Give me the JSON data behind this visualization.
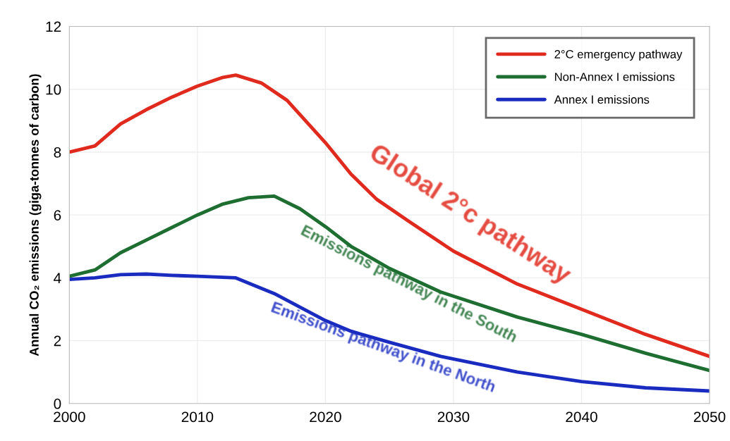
{
  "chart_data": {
    "type": "line",
    "ylabel": "Annual CO₂ emissions (giga-tonnes of carbon)",
    "xlim": [
      2000,
      2050
    ],
    "xticks": [
      2000,
      2010,
      2020,
      2030,
      2040,
      2050
    ],
    "ylim": [
      0,
      12
    ],
    "yticks": [
      0,
      2,
      4,
      6,
      8,
      10,
      12
    ],
    "grid": true,
    "legend": "top right",
    "marker": "none",
    "line_style": "solid",
    "series": [
      {
        "name": "2°C emergency pathway",
        "color": "#e02a1e",
        "x": [
          2000,
          2002,
          2004,
          2006,
          2008,
          2010,
          2012,
          2013,
          2015,
          2017,
          2020,
          2022,
          2024,
          2026.5,
          2030,
          2035,
          2040,
          2045,
          2050
        ],
        "values": [
          8.0,
          8.2,
          8.9,
          9.35,
          9.75,
          10.1,
          10.38,
          10.45,
          10.2,
          9.65,
          8.3,
          7.3,
          6.5,
          5.8,
          4.85,
          3.8,
          3.0,
          2.2,
          1.5
        ]
      },
      {
        "name": "Non-Annex I emissions",
        "color": "#1e6e32",
        "x": [
          2000,
          2002,
          2004,
          2006,
          2008,
          2010,
          2012,
          2014,
          2016,
          2018,
          2020,
          2022,
          2025,
          2029,
          2035,
          2040,
          2045,
          2050
        ],
        "values": [
          4.05,
          4.25,
          4.8,
          5.2,
          5.6,
          6.0,
          6.35,
          6.55,
          6.6,
          6.2,
          5.63,
          5.0,
          4.3,
          3.55,
          2.75,
          2.2,
          1.6,
          1.05
        ]
      },
      {
        "name": "Annex I emissions",
        "color": "#1a2cc0",
        "x": [
          2000,
          2002,
          2004,
          2006,
          2008,
          2010,
          2013,
          2016,
          2020,
          2022,
          2025,
          2029,
          2035,
          2040,
          2045,
          2050
        ],
        "values": [
          3.95,
          4.0,
          4.1,
          4.12,
          4.08,
          4.05,
          4.0,
          3.5,
          2.64,
          2.3,
          1.95,
          1.5,
          1.0,
          0.7,
          0.5,
          0.4
        ]
      }
    ],
    "annotations": [
      "Global 2°c pathway",
      "Emissions pathway in the South",
      "Emissions pathway in the North"
    ]
  }
}
